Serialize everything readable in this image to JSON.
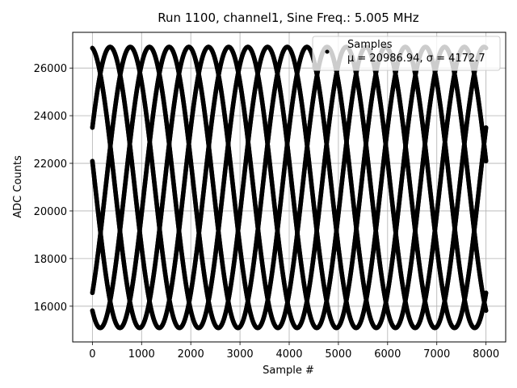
{
  "chart_data": {
    "type": "scatter",
    "title": "Run 1100, channel1, Sine Freq.: 5.005 MHz",
    "xlabel": "Sample #",
    "ylabel": "ADC Counts",
    "xlim": [
      -400,
      8400
    ],
    "ylim": [
      14500,
      27500
    ],
    "xticks": [
      0,
      1000,
      2000,
      3000,
      4000,
      5000,
      6000,
      7000,
      8000
    ],
    "yticks": [
      16000,
      18000,
      20000,
      22000,
      24000,
      26000
    ],
    "grid": true,
    "legend": {
      "placement": "top-right",
      "entries": [
        "Samples",
        "μ = 20986.94, σ = 4172.7"
      ]
    },
    "series": [
      {
        "name": "Samples",
        "color": "#000000",
        "marker": "dot",
        "mean": 20986.94,
        "amplitude": 5900,
        "period": 2000,
        "phases_at_zero": [
          -0.135,
          0.07,
          0.27,
          0.47,
          0.67,
          0.865,
          1.07,
          1.27,
          1.47,
          1.67
        ],
        "x_range": [
          0,
          8000
        ]
      }
    ]
  }
}
